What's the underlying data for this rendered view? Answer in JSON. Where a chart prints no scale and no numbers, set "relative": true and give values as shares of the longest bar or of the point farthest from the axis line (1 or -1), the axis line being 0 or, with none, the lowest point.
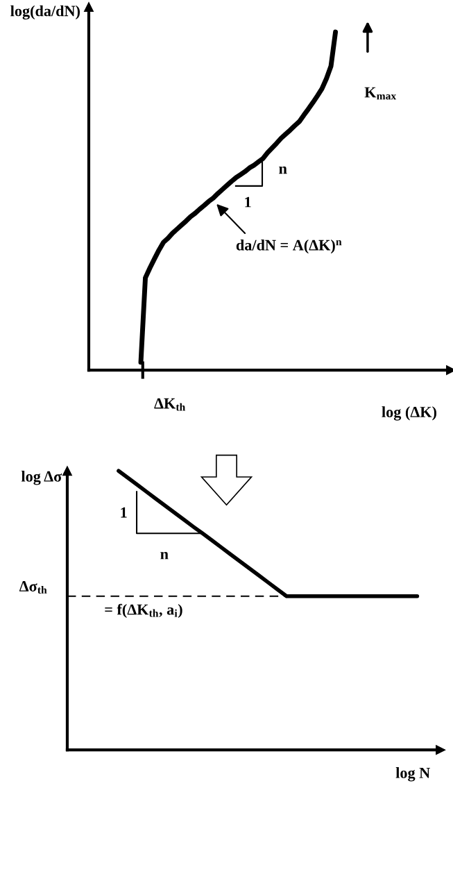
{
  "chart_data": [
    {
      "type": "line",
      "relative": true,
      "xlabel": "log (ΔK)",
      "ylabel": "log(da/dN)",
      "tick_labels": false,
      "categories": [
        null,
        null,
        null,
        null,
        null,
        null,
        null,
        null,
        null,
        null,
        null,
        null,
        null,
        null,
        null,
        null,
        null,
        null,
        null,
        null,
        null,
        null,
        null,
        null,
        null,
        null,
        null,
        null,
        null,
        null,
        null,
        null,
        null,
        null,
        null,
        null,
        null,
        null,
        null,
        null,
        null,
        null,
        null,
        null,
        null,
        null,
        null,
        null,
        null,
        null,
        null,
        null,
        null,
        null,
        null,
        null,
        null,
        null,
        null,
        null,
        null,
        null,
        null,
        null,
        null,
        null,
        null,
        null,
        null,
        null,
        null,
        null,
        null,
        null,
        null,
        null,
        null,
        null,
        null,
        null
      ],
      "series": [
        {
          "color": "#000000",
          "values": [
            null,
            null,
            null,
            null,
            null,
            null,
            null,
            null,
            null,
            null,
            null,
            0.023,
            0.273,
            0.302,
            0.329,
            0.355,
            0.378,
            0.39,
            0.405,
            0.417,
            0.429,
            0.441,
            0.454,
            0.464,
            0.476,
            0.487,
            0.499,
            0.509,
            0.522,
            0.534,
            0.546,
            0.558,
            0.569,
            0.578,
            0.587,
            0.598,
            0.606,
            0.616,
            0.626,
            0.643,
            0.657,
            0.671,
            0.686,
            0.698,
            0.71,
            0.723,
            0.735,
            0.754,
            0.772,
            0.791,
            0.811,
            0.832,
            0.862,
            0.899,
            1.0,
            null,
            null,
            null,
            null,
            null,
            null,
            null,
            null,
            null,
            null,
            null,
            null,
            null,
            null,
            null,
            null,
            null,
            null,
            null,
            null,
            null,
            null,
            null,
            null,
            null
          ]
        }
      ],
      "annotations": [
        "ΔK$_{th}$",
        "K$_{max}$",
        "n",
        "1",
        "da/dN = A(ΔK)$^{n}$"
      ]
    },
    {
      "type": "line",
      "relative": true,
      "xlabel": "log N",
      "ylabel": "log Δσ",
      "tick_labels": false,
      "categories": [
        null,
        null,
        null,
        null,
        null,
        null,
        null,
        null,
        null,
        null,
        null,
        null,
        null,
        null,
        null,
        null,
        null,
        null,
        null,
        null,
        null,
        null,
        null,
        null,
        null,
        null,
        null,
        null,
        null,
        null,
        null,
        null,
        null,
        null,
        null,
        null,
        null,
        null,
        null,
        null
      ],
      "series": [
        {
          "color": "#000000",
          "values": [
            null,
            null,
            null,
            null,
            null,
            1.0,
            0.975,
            0.95,
            0.925,
            0.9,
            0.875,
            0.85,
            0.825,
            0.8,
            0.776,
            0.751,
            0.726,
            0.701,
            0.676,
            0.651,
            0.626,
            0.601,
            0.576,
            0.551,
            0.551,
            0.551,
            0.551,
            0.551,
            0.551,
            0.551,
            0.551,
            0.551,
            0.551,
            0.551,
            0.551,
            0.551,
            0.551,
            0.551,
            null,
            null
          ]
        }
      ],
      "ref_lines": [
        {
          "axis": "y",
          "value": 0.551,
          "label": "Δσ$_{th}$",
          "color": "#000000",
          "line_style": "dashed"
        }
      ],
      "annotations": [
        "1",
        "n",
        "= f(ΔK$_{th}$, a$_{i}$)"
      ]
    }
  ]
}
